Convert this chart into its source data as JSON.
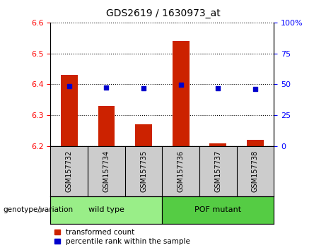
{
  "title": "GDS2619 / 1630973_at",
  "samples": [
    "GSM157732",
    "GSM157734",
    "GSM157735",
    "GSM157736",
    "GSM157737",
    "GSM157738"
  ],
  "transformed_count": [
    6.43,
    6.33,
    6.27,
    6.54,
    6.21,
    6.22
  ],
  "percentile_rank": [
    48.5,
    47.5,
    47.0,
    49.5,
    47.0,
    46.5
  ],
  "bar_base": 6.2,
  "ylim_left": [
    6.2,
    6.6
  ],
  "ylim_right": [
    0,
    100
  ],
  "yticks_left": [
    6.2,
    6.3,
    6.4,
    6.5,
    6.6
  ],
  "yticks_right": [
    0,
    25,
    50,
    75,
    100
  ],
  "ytick_labels_right": [
    "0",
    "25",
    "50",
    "75",
    "100%"
  ],
  "bar_color": "#cc2200",
  "scatter_color": "#0000cc",
  "groups": [
    {
      "label": "wild type",
      "indices": [
        0,
        1,
        2
      ],
      "color": "#99ee88"
    },
    {
      "label": "POF mutant",
      "indices": [
        3,
        4,
        5
      ],
      "color": "#55cc44"
    }
  ],
  "group_label_prefix": "genotype/variation",
  "legend_items": [
    {
      "label": "transformed count",
      "color": "#cc2200"
    },
    {
      "label": "percentile rank within the sample",
      "color": "#0000cc"
    }
  ],
  "grid_linestyle": "dotted",
  "grid_color": "black",
  "bar_width": 0.45,
  "tick_area_bg_color": "#cccccc",
  "figsize": [
    4.61,
    3.54
  ],
  "dpi": 100
}
